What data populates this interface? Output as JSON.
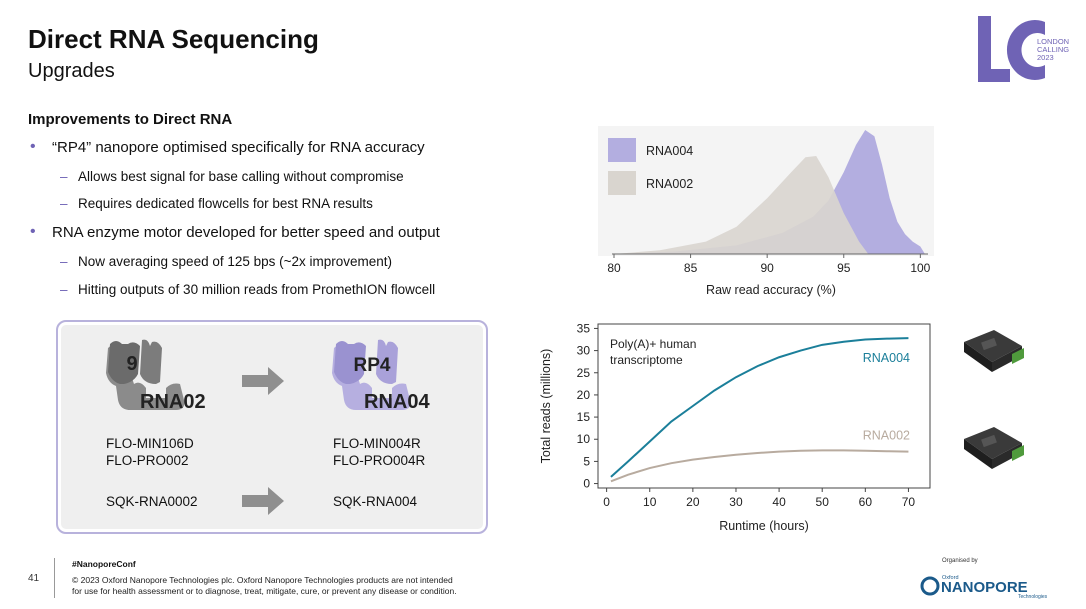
{
  "header": {
    "title": "Direct RNA Sequencing",
    "subtitle": "Upgrades"
  },
  "logo": {
    "letters": "LC",
    "line1": "LONDON",
    "line2": "CALLING",
    "line3": "2023",
    "color": "#6f63b5"
  },
  "content": {
    "heading": "Improvements to Direct RNA",
    "bullets": [
      {
        "text": "“RP4” nanopore optimised specifically for RNA accuracy",
        "subs": [
          "Allows best signal for base calling without compromise",
          "Requires dedicated flowcells for best RNA results"
        ]
      },
      {
        "text": "RNA enzyme motor developed for better speed and output",
        "subs": [
          "Now averaging speed of 125 bps (~2x improvement)",
          "Hitting outputs of 30 million reads from PromethION flowcell"
        ]
      }
    ]
  },
  "comparison": {
    "old": {
      "pore_label": "9",
      "kit_name": "RNA02",
      "flowcells": [
        "FLO-MIN106D",
        "FLO-PRO002"
      ],
      "sqk": "SQK-RNA0002"
    },
    "new": {
      "pore_label": "RP4",
      "kit_name": "RNA04",
      "flowcells": [
        "FLO-MIN004R",
        "FLO-PRO004R"
      ],
      "sqk": "SQK-RNA004"
    }
  },
  "chart_data": [
    {
      "type": "area",
      "title": "",
      "xlabel": "Raw read accuracy (%)",
      "ylabel": "",
      "xlim": [
        80,
        100.5
      ],
      "ylim": [
        0,
        1
      ],
      "xticks": [
        80,
        85,
        90,
        95,
        100
      ],
      "legend": "top-left",
      "series": [
        {
          "name": "RNA004",
          "color": "#b3aee0",
          "x": [
            80,
            84,
            88,
            91,
            93,
            94,
            95,
            95.8,
            96.4,
            97,
            97.5,
            98,
            98.5,
            99,
            99.5,
            100,
            100.3
          ],
          "y": [
            0.0,
            0.02,
            0.07,
            0.17,
            0.3,
            0.43,
            0.66,
            0.88,
            1.0,
            0.95,
            0.72,
            0.45,
            0.26,
            0.16,
            0.1,
            0.06,
            0.0
          ]
        },
        {
          "name": "RNA002",
          "color": "#d9d5cf",
          "x": [
            80,
            83,
            86,
            88,
            90,
            91.5,
            92.5,
            93.2,
            94,
            95,
            96,
            96.6
          ],
          "y": [
            0.0,
            0.03,
            0.1,
            0.22,
            0.45,
            0.65,
            0.78,
            0.79,
            0.62,
            0.33,
            0.1,
            0.0
          ]
        }
      ]
    },
    {
      "type": "line",
      "title": "",
      "annotation": "Poly(A)+ human transcriptome",
      "xlabel": "Runtime (hours)",
      "ylabel": "Total reads (millions)",
      "xlim": [
        -2,
        75
      ],
      "ylim": [
        -1,
        36
      ],
      "xticks": [
        0,
        10,
        20,
        30,
        40,
        50,
        60,
        70
      ],
      "yticks": [
        0,
        5,
        10,
        15,
        20,
        25,
        30,
        35
      ],
      "series": [
        {
          "name": "RNA004",
          "color": "#1b7f9a",
          "x": [
            1,
            5,
            10,
            15,
            20,
            25,
            30,
            35,
            40,
            45,
            50,
            55,
            60,
            65,
            70
          ],
          "y": [
            1.5,
            5,
            9.5,
            14,
            17.5,
            21,
            24,
            26.5,
            28.5,
            30,
            31.3,
            32,
            32.5,
            32.7,
            32.8
          ]
        },
        {
          "name": "RNA002",
          "color": "#b8ab9f",
          "x": [
            1,
            5,
            10,
            15,
            20,
            25,
            30,
            35,
            40,
            45,
            50,
            55,
            60,
            65,
            70
          ],
          "y": [
            0.5,
            2,
            3.5,
            4.6,
            5.4,
            6.0,
            6.5,
            6.9,
            7.2,
            7.4,
            7.5,
            7.5,
            7.4,
            7.3,
            7.2
          ]
        }
      ]
    }
  ],
  "footer": {
    "page_number": "41",
    "hashtag": "#NanoporeConf",
    "copyright_line1": "© 2023 Oxford Nanopore Technologies plc. Oxford Nanopore Technologies products are not intended",
    "copyright_line2": "for use for health assessment or to diagnose, treat, mitigate, cure, or prevent any disease or condition.",
    "organised_by": "Organised by",
    "brand_small": "Oxford",
    "brand": "NANOPORE",
    "brand_sub": "Technologies"
  }
}
